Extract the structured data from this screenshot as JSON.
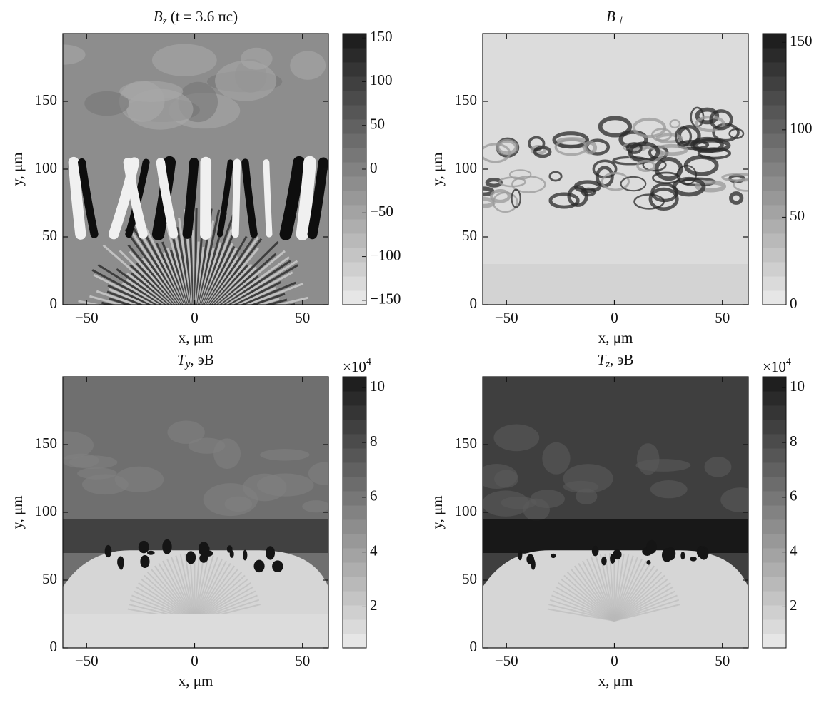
{
  "chart_data": [
    {
      "type": "heatmap",
      "title": {
        "symbol": "B",
        "subscript": "z",
        "text": " (t = 3.6 пс)"
      },
      "xlabel": "x, μm",
      "ylabel": "y, μm",
      "xlim": [
        -61,
        62
      ],
      "xticks": [
        {
          "value": -50,
          "label": "−50"
        },
        0,
        50
      ],
      "ylim": [
        0,
        200
      ],
      "yticks": [
        0,
        50,
        100,
        150
      ],
      "clim": [
        -155,
        155
      ],
      "cticks": [
        {
          "value": -150,
          "label": "−150"
        },
        {
          "value": -100,
          "label": "−100"
        },
        {
          "value": -50,
          "label": "−50"
        },
        0,
        50,
        100,
        150
      ]
    },
    {
      "type": "heatmap",
      "title": {
        "symbol": "B",
        "subscript": "⊥"
      },
      "xlabel": "x, μm",
      "ylabel": "y, μm",
      "xlim": [
        -61,
        62
      ],
      "xticks": [
        {
          "value": -50,
          "label": "−50"
        },
        0,
        50
      ],
      "ylim": [
        0,
        200
      ],
      "yticks": [
        0,
        50,
        100,
        150
      ],
      "clim": [
        0,
        155
      ],
      "cticks": [
        0,
        50,
        100,
        150
      ]
    },
    {
      "type": "heatmap",
      "title": {
        "symbol": "T",
        "subscript": "y",
        "text": ", эВ"
      },
      "xlabel": "x, μm",
      "ylabel": "y, μm",
      "xlim": [
        -61,
        62
      ],
      "xticks": [
        {
          "value": -50,
          "label": "−50"
        },
        0,
        50
      ],
      "ylim": [
        0,
        200
      ],
      "yticks": [
        0,
        50,
        100,
        150
      ],
      "clim": [
        0.5,
        10.4
      ],
      "cticks": [
        2,
        4,
        6,
        8,
        10
      ],
      "offset_label": {
        "base": "×10",
        "exponent": "4"
      }
    },
    {
      "type": "heatmap",
      "title": {
        "symbol": "T",
        "subscript": "z",
        "text": ", эВ"
      },
      "xlabel": "x, μm",
      "ylabel": "y, μm",
      "xlim": [
        -61,
        62
      ],
      "xticks": [
        {
          "value": -50,
          "label": "−50"
        },
        0,
        50
      ],
      "ylim": [
        0,
        200
      ],
      "yticks": [
        0,
        50,
        100,
        150
      ],
      "clim": [
        0.5,
        10.4
      ],
      "cticks": [
        2,
        4,
        6,
        8,
        10
      ],
      "offset_label": {
        "base": "×10",
        "exponent": "4"
      }
    }
  ]
}
